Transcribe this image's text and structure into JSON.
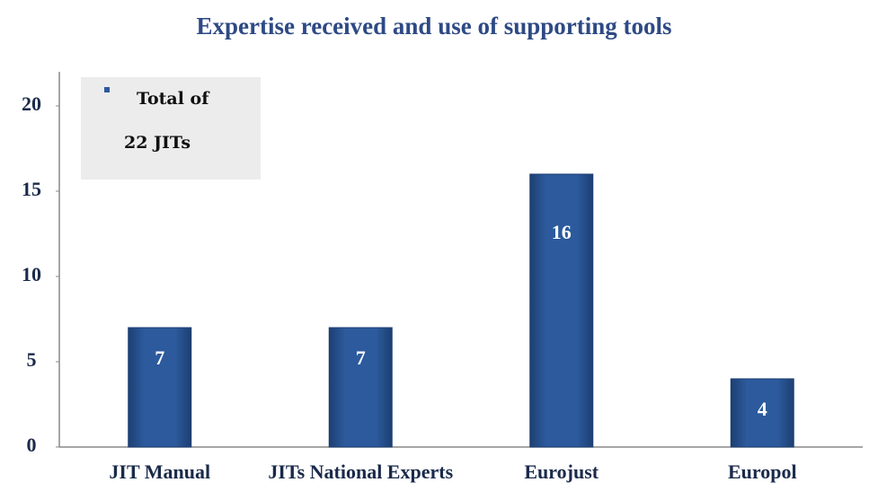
{
  "chart_data": {
    "type": "bar",
    "title": "Expertise received and use of supporting tools",
    "categories": [
      "JIT Manual",
      "JITs National Experts",
      "Eurojust",
      "Europol"
    ],
    "series": [
      {
        "name": "Total of 22 JITs",
        "color": "#2c5a9c",
        "values": [
          7,
          7,
          16,
          4
        ]
      }
    ],
    "ylim": [
      0,
      22
    ],
    "yticks": [
      0,
      5,
      10,
      15,
      20
    ],
    "grid": false,
    "legend": "top-left"
  }
}
